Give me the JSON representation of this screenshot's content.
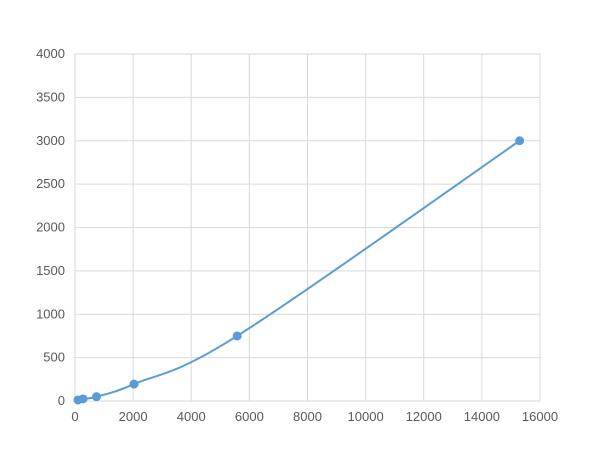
{
  "chart_data": {
    "type": "scatter",
    "title": "",
    "xlabel": "",
    "ylabel": "",
    "xlim": [
      0,
      16000
    ],
    "ylim": [
      0,
      4000
    ],
    "xticks": [
      0,
      2000,
      4000,
      6000,
      8000,
      10000,
      12000,
      14000,
      16000
    ],
    "yticks": [
      0,
      500,
      1000,
      1500,
      2000,
      2500,
      3000,
      3500,
      4000
    ],
    "grid": true,
    "smooth_line": true,
    "color": "#5b9bd5",
    "series": [
      {
        "x": [
          100,
          275,
          740,
          2030,
          5580,
          15300
        ],
        "y": [
          12,
          25,
          50,
          195,
          750,
          3000
        ]
      }
    ]
  }
}
